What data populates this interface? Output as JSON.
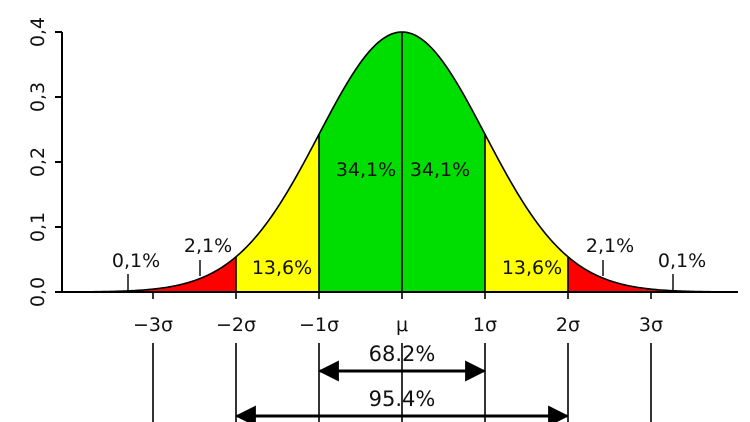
{
  "chart_data": {
    "type": "area",
    "distribution": "normal",
    "mu": 0,
    "sigma": 1,
    "xlim": [
      -3.9,
      3.9
    ],
    "ylim": [
      0,
      0.4
    ],
    "y_ticks": [
      "0,0",
      "0,1",
      "0,2",
      "0,3",
      "0,4"
    ],
    "y_tick_values": [
      0,
      0.1,
      0.2,
      0.3,
      0.4
    ],
    "x_ticks": [
      {
        "value": -3,
        "label": "−3σ"
      },
      {
        "value": -2,
        "label": "−2σ"
      },
      {
        "value": -1,
        "label": "−1σ"
      },
      {
        "value": 0,
        "label": "μ"
      },
      {
        "value": 1,
        "label": "1σ"
      },
      {
        "value": 2,
        "label": "2σ"
      },
      {
        "value": 3,
        "label": "3σ"
      }
    ],
    "regions": [
      {
        "from": -3.9,
        "to": -3,
        "color": "#ff0000",
        "label": "0,1%"
      },
      {
        "from": -3,
        "to": -2,
        "color": "#ff0000",
        "label": "2,1%"
      },
      {
        "from": -2,
        "to": -1,
        "color": "#ffff00",
        "label": "13,6%"
      },
      {
        "from": -1,
        "to": 0,
        "color": "#00dd00",
        "label": "34,1%"
      },
      {
        "from": 0,
        "to": 1,
        "color": "#00dd00",
        "label": "34,1%"
      },
      {
        "from": 1,
        "to": 2,
        "color": "#ffff00",
        "label": "13,6%"
      },
      {
        "from": 2,
        "to": 3,
        "color": "#ff0000",
        "label": "2,1%"
      },
      {
        "from": 3,
        "to": 3.9,
        "color": "#ff0000",
        "label": "0,1%"
      }
    ],
    "ranges": [
      {
        "from": -1,
        "to": 1,
        "label": "68.2%"
      },
      {
        "from": -2,
        "to": 2,
        "label": "95.4%"
      }
    ]
  }
}
